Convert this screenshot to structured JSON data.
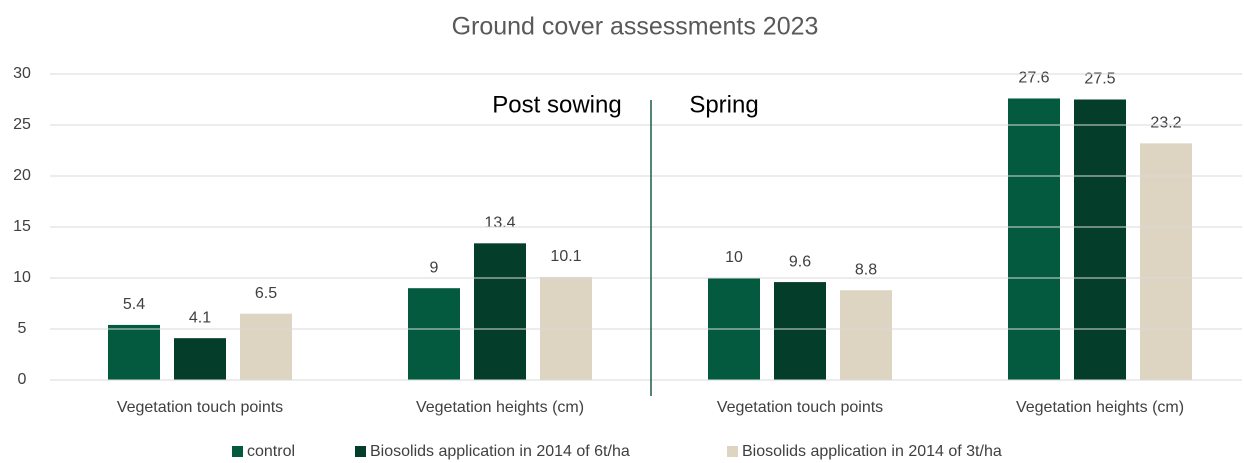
{
  "chart_data": {
    "type": "bar",
    "title": "Ground cover assessments 2023",
    "categories": [
      "Vegetation touch points",
      "Vegetation heights (cm)",
      "Vegetation touch points",
      "Vegetation heights (cm)"
    ],
    "series": [
      {
        "name": "control",
        "color": "#035a3f",
        "values": [
          5.4,
          9,
          10,
          27.6
        ]
      },
      {
        "name": "Biosolids application in 2014 of 6t/ha",
        "color": "#053d2b",
        "values": [
          4.1,
          13.4,
          9.6,
          27.5
        ]
      },
      {
        "name": "Biosolids application in 2014 of 3t/ha",
        "color": "#ddd4c2",
        "values": [
          6.5,
          10.1,
          8.8,
          23.2
        ]
      }
    ],
    "annotations": [
      "Post sowing",
      "Spring"
    ],
    "ylim": [
      0,
      30
    ],
    "yticks": [
      0,
      5,
      10,
      15,
      20,
      25,
      30
    ],
    "grid": true,
    "legend": "bottom"
  }
}
